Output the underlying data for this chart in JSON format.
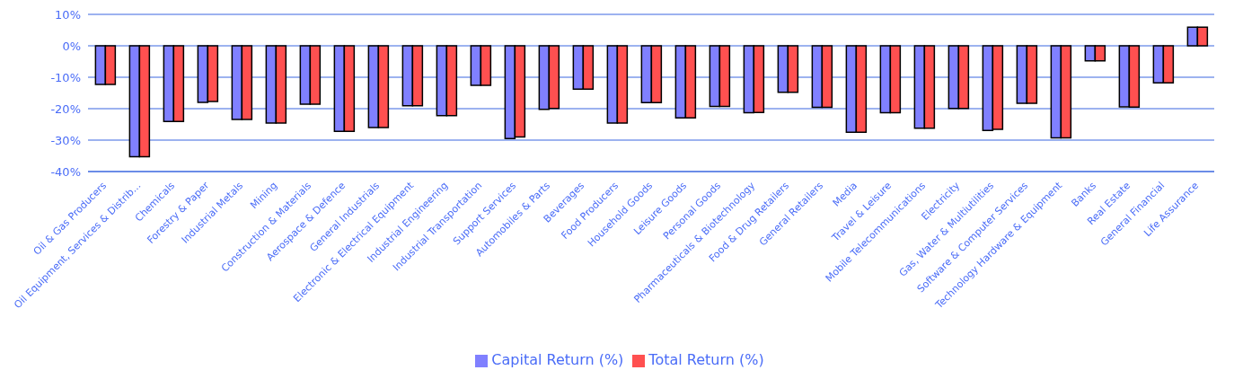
{
  "chart_data": {
    "type": "bar",
    "categories": [
      "Oil & Gas Producers",
      "Oil Equipment, Services & Distrib...",
      "Chemicals",
      "Forestry & Paper",
      "Industrial Metals",
      "Mining",
      "Construction & Materials",
      "Aerospace & Defence",
      "General Industrials",
      "Electronic  & Electrical Equipment",
      "Industrial Engineering",
      "Industrial Transportation",
      "Support Services",
      "Automobiles & Parts",
      "Beverages",
      "Food Producers",
      "Household Goods",
      "Leisure Goods",
      "Personal Goods",
      "Pharmaceuticals & Biotechnology",
      "Food & Drug Retailers",
      "General Retailers",
      "Media",
      "Travel & Leisure",
      "Mobile Telecommunications",
      "Electricity",
      "Gas, Water & Multiutilities",
      "Software & Computer Services",
      "Technology Hardware & Equipment",
      "Banks",
      "Real Estate",
      "General Financial",
      "Life Assurance"
    ],
    "series": [
      {
        "name": "Capital Return (%)",
        "color": "#8080ff",
        "values": [
          -12.3,
          -35.3,
          -24.1,
          -18.0,
          -23.4,
          -24.6,
          -18.6,
          -27.2,
          -26.0,
          -19.1,
          -22.2,
          -12.6,
          -29.5,
          -20.2,
          -13.8,
          -24.6,
          -18.1,
          -22.9,
          -19.3,
          -21.3,
          -14.8,
          -19.6,
          -27.5,
          -21.3,
          -26.2,
          -19.9,
          -26.9,
          -18.3,
          -29.3,
          -4.8,
          -19.4,
          -11.8,
          5.9
        ]
      },
      {
        "name": "Total Return (%)",
        "color": "#ff5050",
        "values": [
          -12.3,
          -35.3,
          -24.1,
          -17.7,
          -23.4,
          -24.6,
          -18.6,
          -27.2,
          -26.0,
          -19.1,
          -22.2,
          -12.6,
          -29.0,
          -19.9,
          -13.8,
          -24.6,
          -18.1,
          -22.9,
          -19.3,
          -21.2,
          -14.8,
          -19.6,
          -27.5,
          -21.3,
          -26.2,
          -19.9,
          -26.6,
          -18.3,
          -29.3,
          -4.8,
          -19.5,
          -11.8,
          5.9
        ]
      }
    ],
    "ylim": [
      -40,
      10
    ],
    "yticks": [
      {
        "value": -40,
        "label": "-40%"
      },
      {
        "value": -30,
        "label": "-30%"
      },
      {
        "value": -20,
        "label": "-20%"
      },
      {
        "value": -10,
        "label": "-10%"
      },
      {
        "value": 0,
        "label": "0%"
      },
      {
        "value": 10,
        "label": "10%"
      }
    ],
    "grid": "y",
    "legend": "bottom"
  }
}
